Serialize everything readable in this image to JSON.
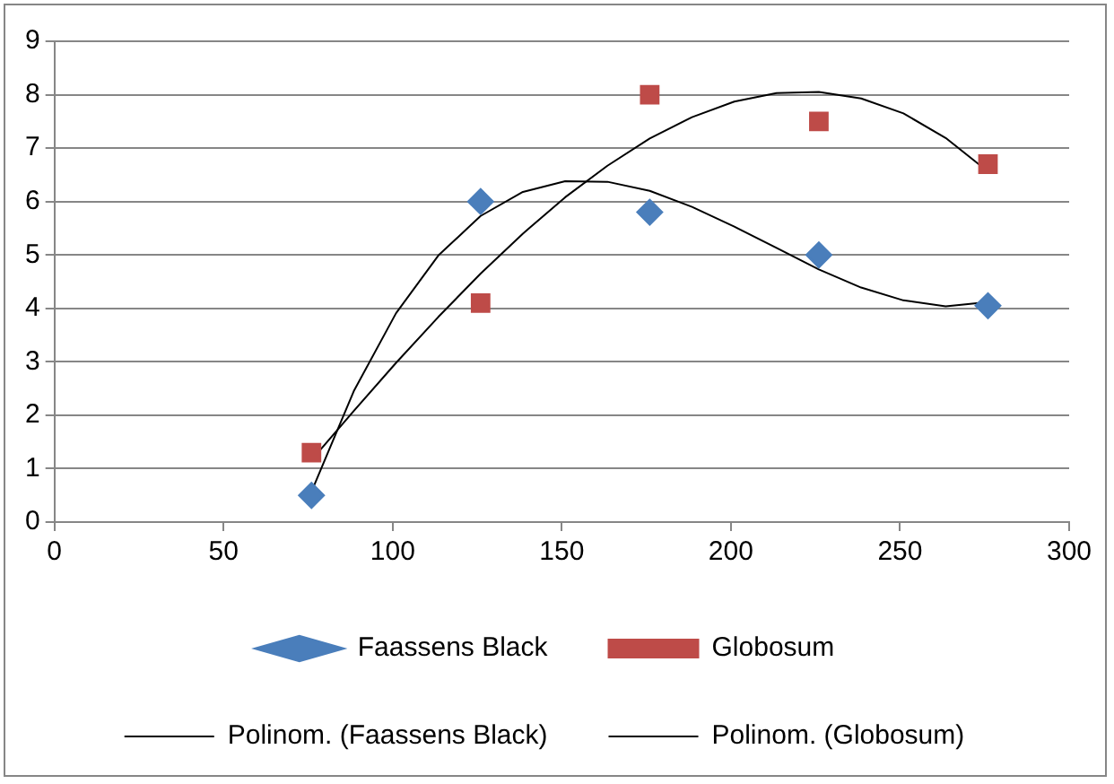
{
  "chart_data": {
    "type": "scatter",
    "xlim": [
      0,
      300
    ],
    "xticks": [
      0,
      50,
      100,
      150,
      200,
      250,
      300
    ],
    "ylim": [
      0,
      9
    ],
    "yticks": [
      0,
      1,
      2,
      3,
      4,
      5,
      6,
      7,
      8,
      9
    ],
    "grid": "y",
    "legend": "bottom",
    "series": [
      {
        "name": "Faassens Black",
        "color": "#4a7ebb",
        "marker": "diamond",
        "x": [
          76,
          126,
          176,
          226,
          276
        ],
        "values": [
          0.5,
          6.0,
          5.8,
          5.0,
          4.05
        ]
      },
      {
        "name": "Globosum",
        "color": "#be4b48",
        "marker": "square",
        "x": [
          76,
          126,
          176,
          226,
          276
        ],
        "values": [
          1.3,
          4.1,
          8.0,
          7.5,
          6.7
        ]
      },
      {
        "name": "Polinom. (Faassens Black)",
        "type": "line",
        "color": "#000000",
        "marker": "none",
        "x": [
          76,
          88.5,
          101,
          113.5,
          126,
          138.5,
          151,
          163.5,
          176,
          188.5,
          201,
          213.5,
          226,
          238.5,
          251,
          263.5,
          276
        ],
        "values": [
          0.57,
          2.45,
          3.91,
          4.99,
          5.73,
          6.18,
          6.38,
          6.37,
          6.2,
          5.9,
          5.53,
          5.13,
          4.73,
          4.39,
          4.15,
          4.04,
          4.12
        ]
      },
      {
        "name": "Polinom. (Globosum)",
        "type": "line",
        "color": "#000000",
        "marker": "none",
        "x": [
          76,
          88.5,
          101,
          113.5,
          126,
          138.5,
          151,
          163.5,
          176,
          188.5,
          201,
          213.5,
          226,
          238.5,
          251,
          263.5,
          276
        ],
        "values": [
          1.16,
          2.08,
          2.98,
          3.84,
          4.65,
          5.4,
          6.08,
          6.67,
          7.18,
          7.58,
          7.87,
          8.03,
          8.05,
          7.93,
          7.65,
          7.19,
          6.56
        ]
      }
    ]
  }
}
